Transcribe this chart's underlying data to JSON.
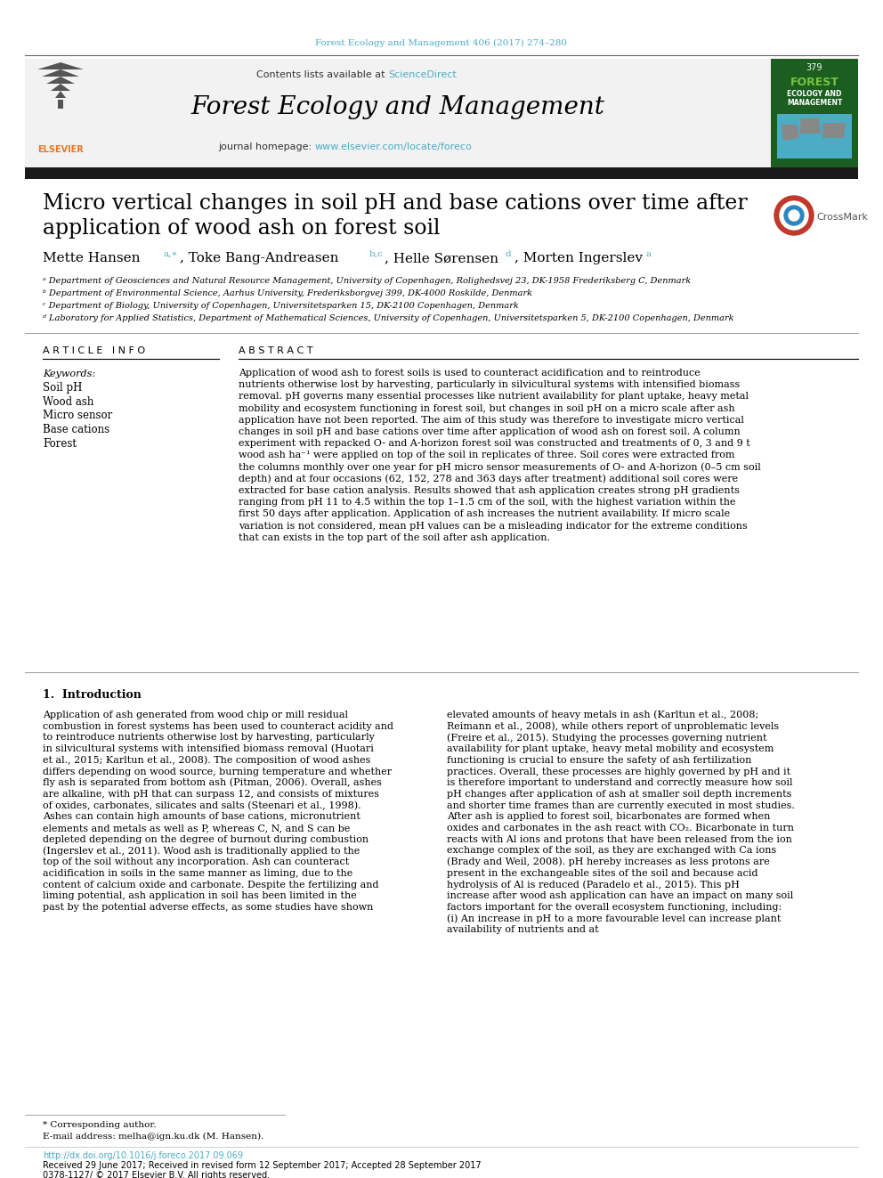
{
  "journal_ref": "Forest Ecology and Management 406 (2017) 274–280",
  "contents_text": "Contents lists available at ",
  "sciencedirect_text": "ScienceDirect",
  "journal_name": "Forest Ecology and Management",
  "journal_homepage_prefix": "journal homepage: ",
  "journal_homepage_url": "www.elsevier.com/locate/foreco",
  "title_line1": "Micro vertical changes in soil pH and base cations over time after",
  "title_line2": "application of wood ash on forest soil",
  "affil_a": "ᵃ Department of Geosciences and Natural Resource Management, University of Copenhagen, Rolighedsvej 23, DK-1958 Frederiksberg C, Denmark",
  "affil_b": "ᵇ Department of Environmental Science, Aarhus University, Frederiksborgvej 399, DK-4000 Roskilde, Denmark",
  "affil_c": "ᶜ Department of Biology, University of Copenhagen, Universitetsparken 15, DK-2100 Copenhagen, Denmark",
  "affil_d": "ᵈ Laboratory for Applied Statistics, Department of Mathematical Sciences, University of Copenhagen, Universitetsparken 5, DK-2100 Copenhagen, Denmark",
  "article_info_title": "A R T I C L E   I N F O",
  "keywords_title": "Keywords:",
  "keywords": [
    "Soil pH",
    "Wood ash",
    "Micro sensor",
    "Base cations",
    "Forest"
  ],
  "abstract_title": "A B S T R A C T",
  "abstract_text": "Application of wood ash to forest soils is used to counteract acidification and to reintroduce nutrients otherwise lost by harvesting, particularly in silvicultural systems with intensified biomass removal. pH governs many essential processes like nutrient availability for plant uptake, heavy metal mobility and ecosystem functioning in forest soil, but changes in soil pH on a micro scale after ash application have not been reported. The aim of this study was therefore to investigate micro vertical changes in soil pH and base cations over time after application of wood ash on forest soil. A column experiment with repacked O- and A-horizon forest soil was constructed and treatments of 0, 3 and 9 t wood ash ha⁻¹ were applied on top of the soil in replicates of three. Soil cores were extracted from the columns monthly over one year for pH micro sensor measurements of O- and A-horizon (0–5 cm soil depth) and at four occasions (62, 152, 278 and 363 days after treatment) additional soil cores were extracted for base cation analysis. Results showed that ash application creates strong pH gradients ranging from pH 11 to 4.5 within the top 1–1.5 cm of the soil, with the highest variation within the first 50 days after application. Application of ash increases the nutrient availability. If micro scale variation is not considered, mean pH values can be a misleading indicator for the extreme conditions that can exists in the top part of the soil after ash application.",
  "intro_title": "1.  Introduction",
  "intro_left": "    Application of ash generated from wood chip or mill residual combustion in forest systems has been used to counteract acidity and to reintroduce nutrients otherwise lost by harvesting, particularly in silvicultural systems with intensified biomass removal (Huotari et al., 2015; Karltun et al., 2008). The composition of wood ashes differs depending on wood source, burning temperature and whether fly ash is separated from bottom ash (Pitman, 2006). Overall, ashes are alkaline, with pH that can surpass 12, and consists of mixtures of oxides, carbonates, silicates and salts (Steenari et al., 1998). Ashes can contain high amounts of base cations, micronutrient elements and metals as well as P, whereas C, N, and S can be depleted depending on the degree of burnout during combustion (Ingerslev et al., 2011). Wood ash is traditionally applied to the top of the soil without any incorporation. Ash can counteract acidification in soils in the same manner as liming, due to the content of calcium oxide and carbonate. Despite the fertilizing and liming potential, ash application in soil has been limited in the past by the potential adverse effects, as some studies have shown",
  "intro_right": "elevated amounts of heavy metals in ash (Karltun et al., 2008; Reimann et al., 2008), while others report of unproblematic levels (Freire et al., 2015). Studying the processes governing nutrient availability for plant uptake, heavy metal mobility and ecosystem functioning is crucial to ensure the safety of ash fertilization practices. Overall, these processes are highly governed by pH and it is therefore important to understand and correctly measure how soil pH changes after application of ash at smaller soil depth increments and shorter time frames than are currently executed in most studies.\n    After ash is applied to forest soil, bicarbonates are formed when oxides and carbonates in the ash react with CO₂. Bicarbonate in turn reacts with Al ions and protons that have been released from the ion exchange complex of the soil, as they are exchanged with Ca ions (Brady and Weil, 2008). pH hereby increases as less protons are present in the exchangeable sites of the soil and because acid hydrolysis of Al is reduced (Paradelo et al., 2015). This pH increase after wood ash application can have an impact on many soil factors important for the overall ecosystem functioning, including: (i) An increase in pH to a more favourable level can increase plant availability of nutrients and at",
  "footnote_corresponding": "* Corresponding author.",
  "footnote_email": "E-mail address: melha@ign.ku.dk (M. Hansen).",
  "doi_text": "http://dx.doi.org/10.1016/j.foreco.2017.09.069",
  "received_text": "Received 29 June 2017; Received in revised form 12 September 2017; Accepted 28 September 2017",
  "copyright_text": "0378-1127/ © 2017 Elsevier B.V. All rights reserved.",
  "header_color": "#4BACC6",
  "link_color": "#4BACC6",
  "black_bar_color": "#1a1a1a",
  "orange_color": "#E87722"
}
